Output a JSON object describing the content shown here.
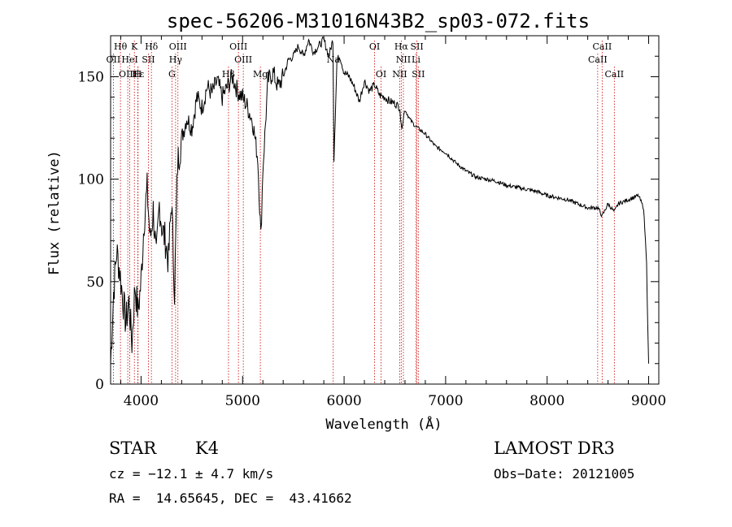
{
  "chart_data": {
    "type": "line",
    "title": "spec-56206-M31016N43B2_sp03-072.fits",
    "xlabel": "Wavelength (Å)",
    "ylabel": "Flux (relative)",
    "xlim": [
      3700,
      9100
    ],
    "ylim": [
      0,
      170
    ],
    "xticks": [
      4000,
      5000,
      6000,
      7000,
      8000,
      9000
    ],
    "yticks": [
      0,
      50,
      100,
      150
    ],
    "spectrum": {
      "x": [
        3700,
        3730,
        3760,
        3790,
        3820,
        3850,
        3880,
        3910,
        3940,
        3970,
        4000,
        4030,
        4060,
        4090,
        4120,
        4150,
        4180,
        4210,
        4240,
        4270,
        4300,
        4330,
        4360,
        4400,
        4450,
        4500,
        4550,
        4600,
        4650,
        4700,
        4750,
        4800,
        4850,
        4900,
        4950,
        5000,
        5050,
        5100,
        5150,
        5180,
        5200,
        5250,
        5300,
        5350,
        5400,
        5450,
        5500,
        5550,
        5600,
        5650,
        5700,
        5750,
        5800,
        5850,
        5890,
        5900,
        5930,
        5960,
        6000,
        6050,
        6100,
        6150,
        6200,
        6250,
        6300,
        6350,
        6400,
        6450,
        6500,
        6550,
        6563,
        6600,
        6650,
        6700,
        6750,
        6800,
        6900,
        7000,
        7100,
        7200,
        7300,
        7400,
        7500,
        7600,
        7700,
        7800,
        7900,
        8000,
        8100,
        8200,
        8300,
        8400,
        8500,
        8542,
        8600,
        8662,
        8700,
        8800,
        8850,
        8900,
        8950,
        8980,
        8990,
        9000
      ],
      "y": [
        10,
        45,
        65,
        55,
        42,
        30,
        40,
        20,
        48,
        35,
        50,
        80,
        95,
        70,
        85,
        60,
        88,
        75,
        70,
        60,
        90,
        45,
        108,
        120,
        130,
        125,
        140,
        135,
        145,
        142,
        148,
        140,
        145,
        150,
        143,
        140,
        135,
        128,
        110,
        72,
        105,
        148,
        152,
        145,
        150,
        158,
        160,
        165,
        160,
        168,
        162,
        165,
        168,
        160,
        168,
        110,
        158,
        160,
        152,
        150,
        145,
        138,
        148,
        143,
        146,
        141,
        140,
        138,
        137,
        135,
        125,
        134,
        129,
        126,
        124,
        122,
        116,
        113,
        108,
        104,
        101,
        100,
        99,
        97,
        96,
        95,
        94,
        92,
        91,
        90,
        88,
        86,
        86,
        82,
        88,
        84,
        88,
        90,
        91,
        92,
        86,
        60,
        30,
        10
      ]
    },
    "spectral_lines": [
      {
        "name": "Hθ",
        "wavelength": 3797,
        "row": 0
      },
      {
        "name": "K",
        "wavelength": 3934,
        "row": 0
      },
      {
        "name": "Hδ",
        "wavelength": 4102,
        "row": 0
      },
      {
        "name": "OIII",
        "wavelength": 4363,
        "row": 0
      },
      {
        "name": "OIII",
        "wavelength": 4959,
        "row": 0
      },
      {
        "name": "OI",
        "wavelength": 6300,
        "row": 0
      },
      {
        "name": "Hα",
        "wavelength": 6563,
        "row": 0
      },
      {
        "name": "SII",
        "wavelength": 6717,
        "row": 0
      },
      {
        "name": "CaII",
        "wavelength": 8542,
        "row": 0
      },
      {
        "name": "OII",
        "wavelength": 3727,
        "row": 1
      },
      {
        "name": "HeI",
        "wavelength": 3889,
        "row": 1
      },
      {
        "name": "SII",
        "wavelength": 4072,
        "row": 1
      },
      {
        "name": "Hγ",
        "wavelength": 4340,
        "row": 1
      },
      {
        "name": "OIII",
        "wavelength": 5007,
        "row": 1
      },
      {
        "name": "Na",
        "wavelength": 5893,
        "row": 1
      },
      {
        "name": "NII",
        "wavelength": 6584,
        "row": 1
      },
      {
        "name": "Li",
        "wavelength": 6708,
        "row": 1
      },
      {
        "name": "CaII",
        "wavelength": 8498,
        "row": 1
      },
      {
        "name": "OIII",
        "wavelength": 3869,
        "row": 2
      },
      {
        "name": "Hε",
        "wavelength": 3970,
        "row": 2
      },
      {
        "name": "H",
        "wavelength": 3968,
        "row": 2
      },
      {
        "name": "G",
        "wavelength": 4304,
        "row": 2
      },
      {
        "name": "Hβ",
        "wavelength": 4861,
        "row": 2
      },
      {
        "name": "Mg",
        "wavelength": 5175,
        "row": 2
      },
      {
        "name": "OI",
        "wavelength": 6364,
        "row": 2
      },
      {
        "name": "NII",
        "wavelength": 6548,
        "row": 2
      },
      {
        "name": "SII",
        "wavelength": 6731,
        "row": 2
      },
      {
        "name": "CaII",
        "wavelength": 8662,
        "row": 2
      }
    ]
  },
  "info": {
    "class": "STAR",
    "subclass": "K4",
    "survey": "LAMOST DR3",
    "cz_line": "cz = −12.1 ± 4.7 km/s",
    "obs_date_line": "Obs−Date: 20121005",
    "coords_line": "RA =  14.65645, DEC =  43.41662"
  }
}
